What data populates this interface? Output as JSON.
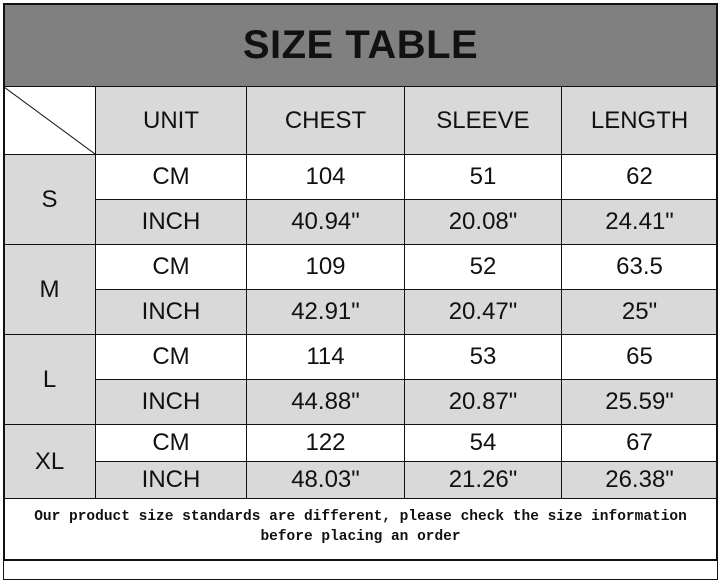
{
  "title": "SIZE TABLE",
  "headers": [
    "UNIT",
    "CHEST",
    "SLEEVE",
    "LENGTH"
  ],
  "sizes": [
    {
      "size": "S",
      "rows": [
        {
          "unit": "CM",
          "chest": "104",
          "sleeve": "51",
          "length": "62"
        },
        {
          "unit": "INCH",
          "chest": "40.94\"",
          "sleeve": "20.08\"",
          "length": "24.41\""
        }
      ]
    },
    {
      "size": "M",
      "rows": [
        {
          "unit": "CM",
          "chest": "109",
          "sleeve": "52",
          "length": "63.5"
        },
        {
          "unit": "INCH",
          "chest": "42.91\"",
          "sleeve": "20.47\"",
          "length": "25\""
        }
      ]
    },
    {
      "size": "L",
      "rows": [
        {
          "unit": "CM",
          "chest": "114",
          "sleeve": "53",
          "length": "65"
        },
        {
          "unit": "INCH",
          "chest": "44.88\"",
          "sleeve": "20.87\"",
          "length": "25.59\""
        }
      ]
    },
    {
      "size": "XL",
      "rows": [
        {
          "unit": "CM",
          "chest": "122",
          "sleeve": "54",
          "length": "67"
        },
        {
          "unit": "INCH",
          "chest": "48.03\"",
          "sleeve": "21.26\"",
          "length": "26.38\""
        }
      ]
    }
  ],
  "footer": {
    "line1": "Our product size standards are different, please check the size information",
    "line2": "before placing an order"
  },
  "colors": {
    "title_bg": "#808080",
    "cell_gray": "#d9d9d9",
    "cell_white": "#ffffff"
  }
}
